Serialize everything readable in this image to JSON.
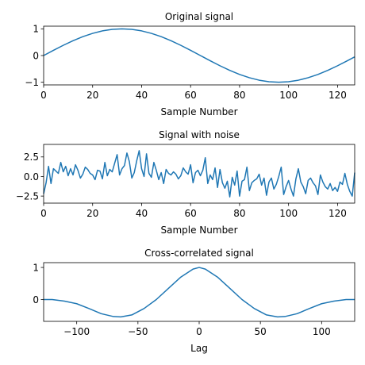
{
  "chart_data": [
    {
      "type": "line",
      "title": "Original signal",
      "xlabel": "Sample Number",
      "ylabel": "",
      "xlim": [
        0,
        127
      ],
      "ylim": [
        -1.1,
        1.1
      ],
      "xticks": [
        0,
        20,
        40,
        60,
        80,
        100,
        120
      ],
      "xtick_labels": [
        "0",
        "20",
        "40",
        "60",
        "80",
        "100",
        "120"
      ],
      "yticks": [
        1,
        0,
        -1
      ],
      "ytick_labels": [
        "1",
        "0",
        "−1"
      ],
      "grid": false,
      "color": "#1f77b4",
      "series": [
        {
          "x": [
            0,
            4,
            8,
            12,
            16,
            20,
            24,
            28,
            32,
            36,
            40,
            44,
            48,
            52,
            56,
            60,
            64,
            68,
            72,
            76,
            80,
            84,
            88,
            92,
            96,
            100,
            104,
            108,
            112,
            116,
            120,
            124,
            127
          ],
          "values": [
            0,
            0.195,
            0.383,
            0.556,
            0.707,
            0.831,
            0.924,
            0.981,
            1,
            0.981,
            0.924,
            0.831,
            0.707,
            0.556,
            0.383,
            0.195,
            0,
            -0.195,
            -0.383,
            -0.556,
            -0.707,
            -0.831,
            -0.924,
            -0.981,
            -1,
            -0.981,
            -0.924,
            -0.831,
            -0.707,
            -0.556,
            -0.383,
            -0.195,
            -0.049
          ]
        }
      ]
    },
    {
      "type": "line",
      "title": "Signal with noise",
      "xlabel": "Sample Number",
      "ylabel": "",
      "xlim": [
        0,
        127
      ],
      "ylim": [
        -3.4,
        4.1
      ],
      "xticks": [
        0,
        20,
        40,
        60,
        80,
        100,
        120
      ],
      "xtick_labels": [
        "0",
        "20",
        "40",
        "60",
        "80",
        "100",
        "120"
      ],
      "yticks": [
        2.5,
        0,
        -2.5
      ],
      "ytick_labels": [
        "2.5",
        "0.0",
        "−2.5"
      ],
      "grid": false,
      "color": "#1f77b4",
      "series": [
        {
          "x": [
            0,
            1,
            2,
            3,
            4,
            5,
            6,
            7,
            8,
            9,
            10,
            11,
            12,
            13,
            14,
            15,
            16,
            17,
            18,
            19,
            20,
            21,
            22,
            23,
            24,
            25,
            26,
            27,
            28,
            29,
            30,
            31,
            32,
            33,
            34,
            35,
            36,
            37,
            38,
            39,
            40,
            41,
            42,
            43,
            44,
            45,
            46,
            47,
            48,
            49,
            50,
            51,
            52,
            53,
            54,
            55,
            56,
            57,
            58,
            59,
            60,
            61,
            62,
            63,
            64,
            65,
            66,
            67,
            68,
            69,
            70,
            71,
            72,
            73,
            74,
            75,
            76,
            77,
            78,
            79,
            80,
            81,
            82,
            83,
            84,
            85,
            86,
            87,
            88,
            89,
            90,
            91,
            92,
            93,
            94,
            95,
            96,
            97,
            98,
            99,
            100,
            101,
            102,
            103,
            104,
            105,
            106,
            107,
            108,
            109,
            110,
            111,
            112,
            113,
            114,
            115,
            116,
            117,
            118,
            119,
            120,
            121,
            122,
            123,
            124,
            125,
            126,
            127
          ],
          "values": [
            -2.2,
            -0.8,
            1.3,
            -0.9,
            1.0,
            0.7,
            0.4,
            1.8,
            0.6,
            1.3,
            0.1,
            1.0,
            0.2,
            1.5,
            0.8,
            -0.2,
            0.3,
            1.2,
            0.9,
            0.4,
            0.2,
            -0.4,
            0.8,
            0.7,
            -0.3,
            1.8,
            0.1,
            0.9,
            0.6,
            1.7,
            2.8,
            0.2,
            1.0,
            1.4,
            3.0,
            1.9,
            -0.2,
            0.5,
            2.0,
            3.3,
            1.0,
            0.0,
            2.9,
            0.4,
            -0.1,
            1.8,
            0.8,
            -0.4,
            0.5,
            -0.9,
            0.9,
            0.4,
            0.2,
            0.6,
            0.3,
            -0.3,
            0.1,
            1.1,
            0.6,
            0.3,
            1.5,
            -0.8,
            0.5,
            0.8,
            0.1,
            0.8,
            2.4,
            -0.9,
            0.2,
            -0.4,
            1.1,
            -1.4,
            0.9,
            -0.8,
            -1.5,
            -0.6,
            -2.6,
            -0.1,
            -1.1,
            0.7,
            -2.5,
            -0.6,
            -0.4,
            1.2,
            -1.8,
            -0.8,
            -0.5,
            -0.3,
            0.3,
            -1.1,
            -0.2,
            -2.4,
            -0.7,
            -0.2,
            -1.6,
            -1.0,
            0.0,
            1.2,
            -2.3,
            -1.3,
            -0.5,
            -1.6,
            -2.5,
            -0.3,
            1.0,
            -0.7,
            -1.3,
            -2.2,
            -0.5,
            -0.2,
            -0.8,
            -1.2,
            -2.3,
            0.2,
            -0.7,
            -1.3,
            -1.6,
            -0.9,
            -1.8,
            -1.4,
            -1.9,
            -0.7,
            -1.0,
            0.4,
            -1.0,
            -1.9,
            -2.5,
            0.5
          ]
        }
      ]
    },
    {
      "type": "line",
      "title": "Cross-correlated signal",
      "xlabel": "Lag",
      "ylabel": "",
      "xlim": [
        -127,
        127
      ],
      "ylim": [
        -0.68,
        1.15
      ],
      "xticks": [
        -100,
        -50,
        0,
        50,
        100
      ],
      "xtick_labels": [
        "−100",
        "−50",
        "0",
        "50",
        "100"
      ],
      "yticks": [
        1,
        0
      ],
      "ytick_labels": [
        "1",
        "0"
      ],
      "grid": false,
      "color": "#1f77b4",
      "series": [
        {
          "x": [
            -127,
            -120,
            -110,
            -100,
            -90,
            -80,
            -70,
            -64,
            -55,
            -45,
            -35,
            -25,
            -15,
            -5,
            0,
            5,
            15,
            25,
            35,
            45,
            55,
            64,
            70,
            80,
            90,
            100,
            110,
            120,
            127
          ],
          "values": [
            0,
            0.0,
            -0.05,
            -0.13,
            -0.28,
            -0.44,
            -0.53,
            -0.54,
            -0.48,
            -0.28,
            0.0,
            0.35,
            0.7,
            0.95,
            1.0,
            0.95,
            0.7,
            0.35,
            0.0,
            -0.28,
            -0.48,
            -0.54,
            -0.53,
            -0.44,
            -0.28,
            -0.13,
            -0.05,
            0.0,
            0
          ]
        }
      ]
    }
  ]
}
